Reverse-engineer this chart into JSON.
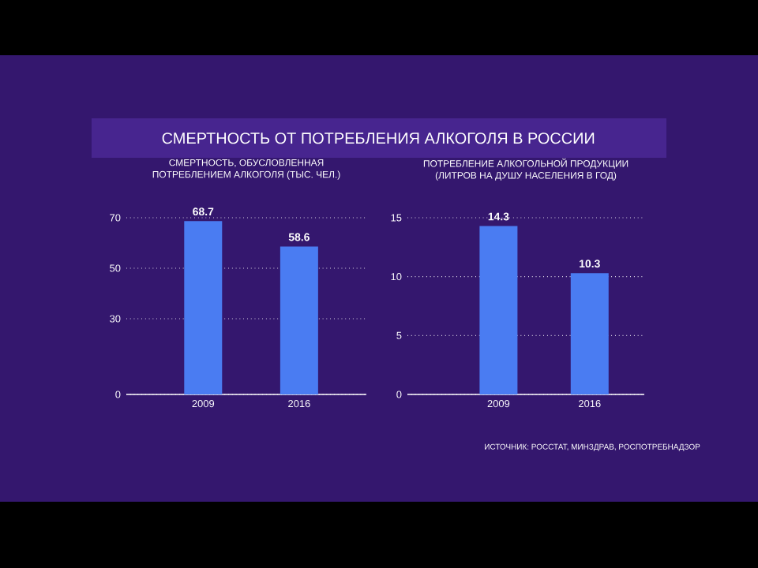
{
  "chart_data": [
    {
      "type": "bar",
      "title": "СМЕРТНОСТЬ ОТ ПОТРЕБЛЕНИЯ АЛКОГОЛЯ В РОССИИ",
      "subtitle": "СМЕРТНОСТЬ, ОБУСЛОВЛЕННАЯ\nПОТРЕБЛЕНИЕМ АЛКОГОЛЯ (ТЫС. ЧЕЛ.)",
      "categories": [
        "2009",
        "2016"
      ],
      "values": [
        68.7,
        58.6
      ],
      "color": "#4a7cf2",
      "ylim": [
        0,
        70
      ],
      "yticks": [
        0,
        30,
        50,
        70
      ],
      "grid": "y",
      "data_labels": true
    },
    {
      "type": "bar",
      "title": "ПОТРЕБЛЕНИЕ АЛКОГОЛЬНОЙ ПРОДУКЦИИ\n(ЛИТРОВ НА ДУШУ НАСЕЛЕНИЯ В ГОД)",
      "categories": [
        "2009",
        "2016"
      ],
      "values": [
        14.3,
        10.3
      ],
      "color": "#4a7cf2",
      "ylim": [
        0,
        15
      ],
      "yticks": [
        0,
        5,
        10,
        15
      ],
      "grid": "y",
      "data_labels": true,
      "annotations": [
        "ИСТОЧНИК: РОССТАТ, МИНЗДРАВ, РОСПОТРЕБНАДЗОР"
      ]
    }
  ]
}
